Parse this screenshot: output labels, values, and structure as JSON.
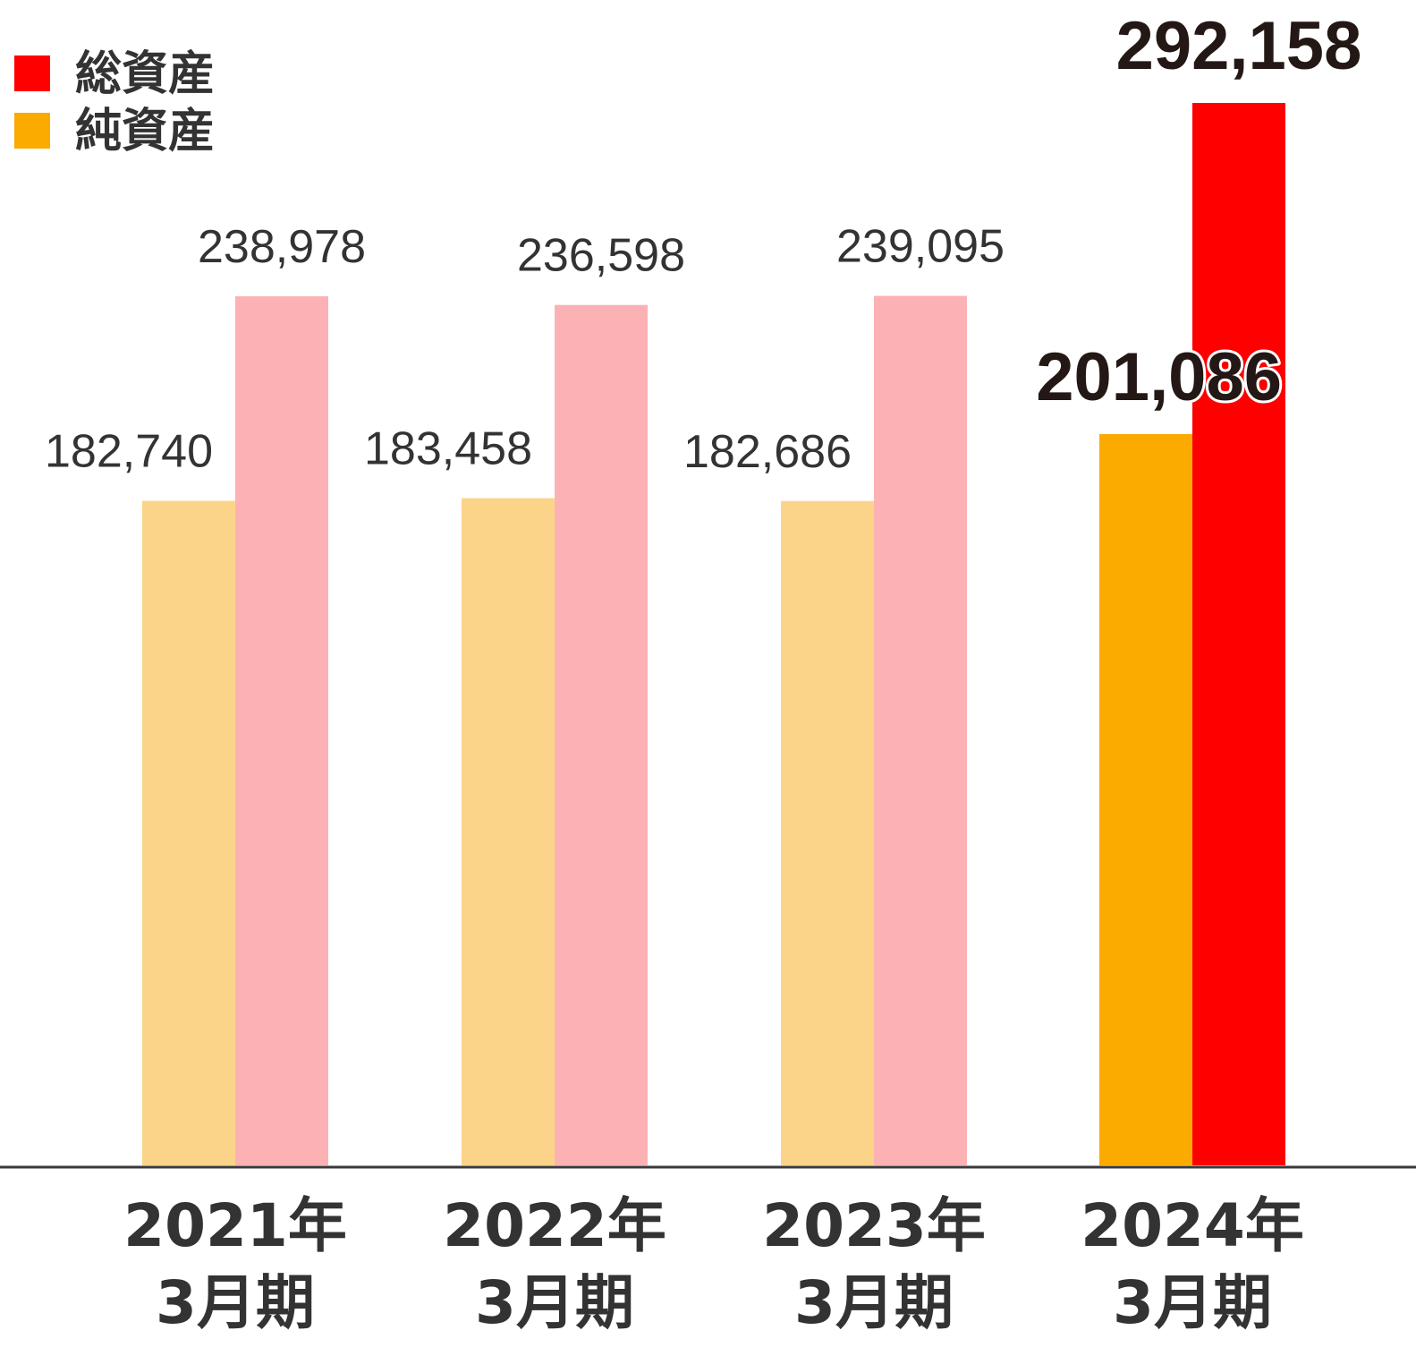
{
  "chart_data": {
    "type": "bar",
    "categories": [
      [
        "2021年",
        "3月期"
      ],
      [
        "2022年",
        "3月期"
      ],
      [
        "2023年",
        "3月期"
      ],
      [
        "2024年",
        "3月期"
      ]
    ],
    "series": [
      {
        "name": "純資産",
        "values": [
          182740,
          183458,
          182686,
          201086
        ],
        "labels": [
          "182,740",
          "183,458",
          "182,686",
          "201,086"
        ],
        "color": "#fcd489",
        "highlight_color": "#fbaa00"
      },
      {
        "name": "総資産",
        "values": [
          238978,
          236598,
          239095,
          292158
        ],
        "labels": [
          "238,978",
          "236,598",
          "239,095",
          "292,158"
        ],
        "color": "#fcb2b4",
        "highlight_color": "#ff0000"
      }
    ],
    "highlight_index": 3,
    "legend": {
      "position": "top-left",
      "items": [
        {
          "label": "総資産",
          "color": "#ff0000"
        },
        {
          "label": "純資産",
          "color": "#fbaa00"
        }
      ]
    },
    "ylim": [
      0,
      292158
    ],
    "grid": false,
    "title": "",
    "xlabel": "",
    "ylabel": ""
  }
}
